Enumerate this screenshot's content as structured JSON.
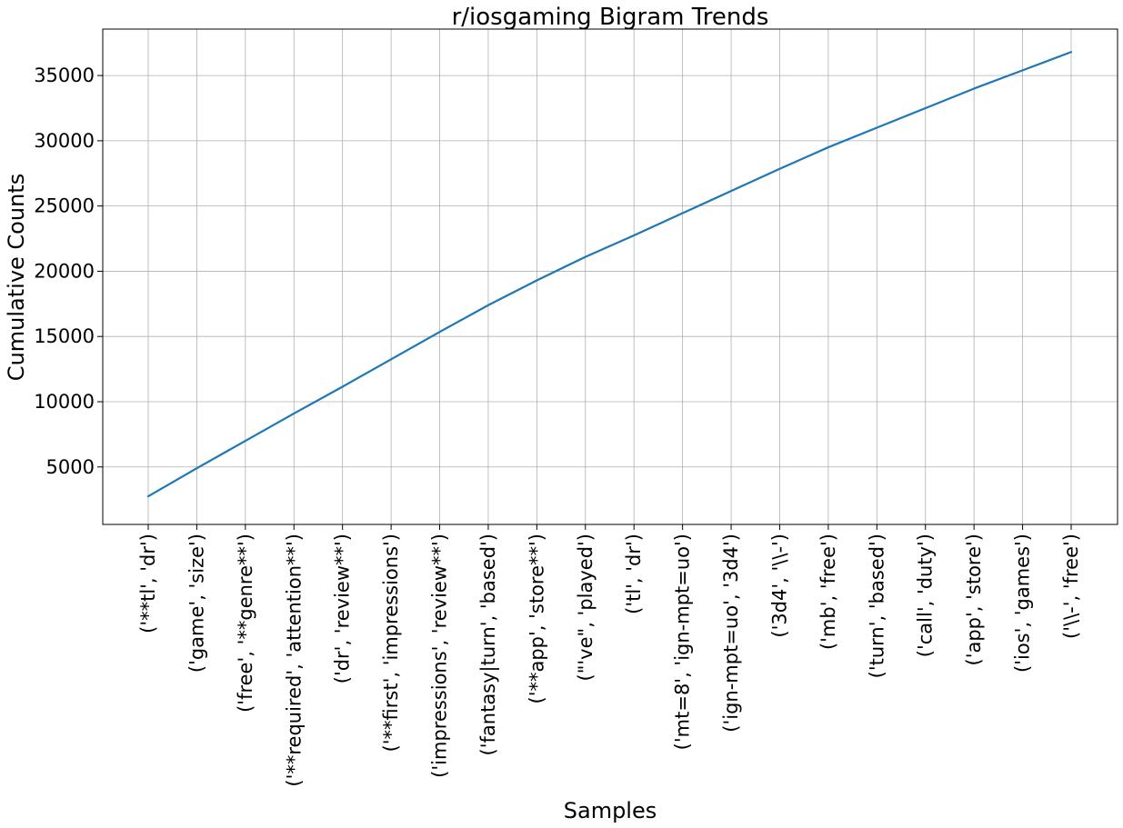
{
  "chart_data": {
    "type": "line",
    "title": "r/iosgaming Bigram Trends",
    "xlabel": "Samples",
    "ylabel": "Cumulative Counts",
    "categories": [
      "('**tl', 'dr')",
      "('game', 'size')",
      "('free', '**genre**')",
      "('**required', 'attention**')",
      "('dr', 'review**')",
      "('**first', 'impressions')",
      "('impressions', 'review**')",
      "('fantasy|turn', 'based')",
      "('**app', 'store**')",
      "(\"'ve\", 'played')",
      "('tl', 'dr')",
      "('mt=8', 'ign-mpt=uo')",
      "('ign-mpt=uo', '3d4')",
      "('3d4', '\\\\-')",
      "('mb', 'free')",
      "('turn', 'based')",
      "('call', 'duty')",
      "('app', 'store')",
      "('ios', 'games')",
      "('\\\\-', 'free')"
    ],
    "series": [
      {
        "values": [
          2750,
          4900,
          7000,
          9100,
          11150,
          13250,
          15350,
          17400,
          19300,
          21100,
          22750,
          24450,
          26150,
          27850,
          29500,
          31000,
          32500,
          34000,
          35400,
          36800
        ]
      }
    ],
    "yticks": [
      5000,
      10000,
      15000,
      20000,
      25000,
      30000,
      35000
    ],
    "ylim": [
      595,
      38560
    ],
    "grid": true,
    "line_color": "#1f77b4"
  }
}
